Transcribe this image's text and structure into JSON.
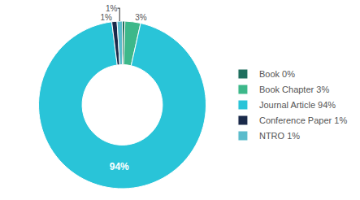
{
  "chart_data": {
    "type": "donut",
    "categories": [
      "Book 0%",
      "Book Chapter 3%",
      "Journal Article 94%",
      "Conference Paper 1%",
      "NTRO 1%"
    ],
    "values": [
      0.5,
      3,
      94,
      1,
      1
    ],
    "value_labels": [
      null,
      "3%",
      "94%",
      "1%",
      "1%"
    ],
    "data_labels": true,
    "colors": [
      "#1f6f5e",
      "#3db88a",
      "#29c4d8",
      "#1a2a4a",
      "#5bbccc"
    ],
    "legend": "right"
  }
}
